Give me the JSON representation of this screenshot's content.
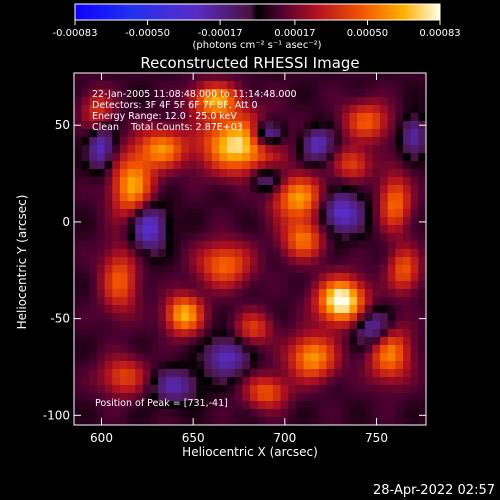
{
  "chart_data": {
    "type": "heatmap",
    "title": "Reconstructed RHESSI Image",
    "xlabel": "Heliocentric X (arcsec)",
    "ylabel": "Heliocentric Y (arcsec)",
    "xlim": [
      585,
      777
    ],
    "ylim": [
      -105,
      77
    ],
    "xticks": [
      600,
      650,
      700,
      750
    ],
    "yticks": [
      -100,
      -50,
      0,
      50
    ],
    "colorbar": {
      "vmin": -0.00083,
      "vmax": 0.00083,
      "tick_values": [
        -0.00083,
        -0.0005,
        -0.00017,
        0.00017,
        0.0005,
        0.00083
      ],
      "tick_labels": [
        "-0.00083",
        "-0.00050",
        "-0.00017",
        "0.00017",
        "0.00050",
        "0.00083"
      ],
      "unit_label": "(photons cm⁻² s⁻¹ asec⁻²)"
    },
    "annotations": [
      "22-Jan-2005 11:08:48.000 to 11:14:48.000",
      "Detectors: 3F 4F 5F 6F 7F 8F, Att 0",
      "Energy Range: 12.0 - 25.0 keV",
      "Clean    Total Counts: 2.87E+03"
    ],
    "peak_label": "Position of Peak = [731,-41]",
    "grid_cols": 46,
    "grid_rows": 44,
    "hotspots": [
      {
        "x": 675,
        "y": 40,
        "amp": 0.00072,
        "sx": 14,
        "sy": 10
      },
      {
        "x": 731,
        "y": -41,
        "amp": 0.00083,
        "sx": 9,
        "sy": 8
      },
      {
        "x": 662,
        "y": 63,
        "amp": 0.00055,
        "sx": 9,
        "sy": 6
      },
      {
        "x": 617,
        "y": 18,
        "amp": 0.00058,
        "sx": 8,
        "sy": 12
      },
      {
        "x": 633,
        "y": 38,
        "amp": 0.0005,
        "sx": 9,
        "sy": 7
      },
      {
        "x": 708,
        "y": 12,
        "amp": 0.00055,
        "sx": 10,
        "sy": 8
      },
      {
        "x": 710,
        "y": -9,
        "amp": 0.00046,
        "sx": 8,
        "sy": 7
      },
      {
        "x": 667,
        "y": -22,
        "amp": 0.00045,
        "sx": 10,
        "sy": 8
      },
      {
        "x": 645,
        "y": -48,
        "amp": 0.0006,
        "sx": 7,
        "sy": 7
      },
      {
        "x": 610,
        "y": -30,
        "amp": 0.0004,
        "sx": 7,
        "sy": 12
      },
      {
        "x": 715,
        "y": -70,
        "amp": 0.00055,
        "sx": 9,
        "sy": 8
      },
      {
        "x": 757,
        "y": -68,
        "amp": 0.0005,
        "sx": 8,
        "sy": 10
      },
      {
        "x": 760,
        "y": 10,
        "amp": 0.00045,
        "sx": 6,
        "sy": 10
      },
      {
        "x": 745,
        "y": 52,
        "amp": 0.0004,
        "sx": 9,
        "sy": 7
      },
      {
        "x": 690,
        "y": -88,
        "amp": 0.0004,
        "sx": 8,
        "sy": 6
      },
      {
        "x": 612,
        "y": -80,
        "amp": 0.00035,
        "sx": 9,
        "sy": 7
      },
      {
        "x": 765,
        "y": -25,
        "amp": 0.0004,
        "sx": 6,
        "sy": 8
      },
      {
        "x": 737,
        "y": 30,
        "amp": 0.00035,
        "sx": 7,
        "sy": 6
      },
      {
        "x": 683,
        "y": -55,
        "amp": 0.00032,
        "sx": 7,
        "sy": 6
      },
      {
        "x": 598,
        "y": 58,
        "amp": 0.0003,
        "sx": 6,
        "sy": 7
      },
      {
        "x": 690,
        "y": 45,
        "amp": -0.00055,
        "sx": 6,
        "sy": 5
      },
      {
        "x": 625,
        "y": -2,
        "amp": -0.00045,
        "sx": 7,
        "sy": 9
      },
      {
        "x": 730,
        "y": 5,
        "amp": -0.0004,
        "sx": 9,
        "sy": 8
      },
      {
        "x": 718,
        "y": 40,
        "amp": -0.00035,
        "sx": 6,
        "sy": 6
      },
      {
        "x": 748,
        "y": -55,
        "amp": -0.0004,
        "sx": 7,
        "sy": 7
      },
      {
        "x": 668,
        "y": -70,
        "amp": -0.00035,
        "sx": 8,
        "sy": 7
      },
      {
        "x": 640,
        "y": -85,
        "amp": -0.0003,
        "sx": 9,
        "sy": 6
      },
      {
        "x": 600,
        "y": 38,
        "amp": -0.00035,
        "sx": 5,
        "sy": 8
      },
      {
        "x": 770,
        "y": 45,
        "amp": -0.0003,
        "sx": 5,
        "sy": 7
      },
      {
        "x": 690,
        "y": 22,
        "amp": -0.0003,
        "sx": 6,
        "sy": 5
      }
    ]
  },
  "footer": {
    "timestamp": "28-Apr-2022 02:57"
  }
}
